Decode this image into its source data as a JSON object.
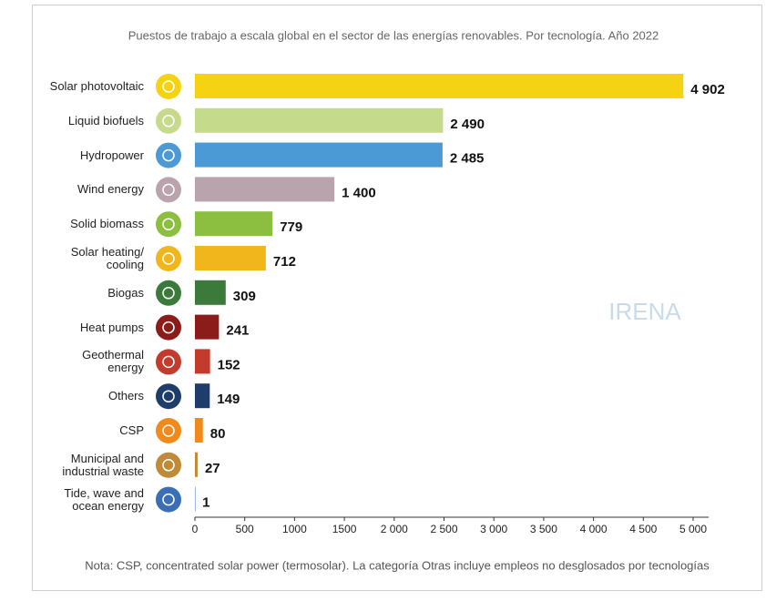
{
  "chart_data": {
    "type": "bar",
    "orientation": "horizontal",
    "title": "Puestos de trabajo a escala global en el sector de las energías renovables. Por tecnología. Año 2022",
    "categories": [
      "Solar photovoltaic",
      "Liquid biofuels",
      "Hydropower",
      "Wind energy",
      "Solid biomass",
      "Solar heating/ cooling",
      "Biogas",
      "Heat pumps",
      "Geothermal energy",
      "Others",
      "CSP",
      "Municipal and industrial waste",
      "Tide, wave and ocean energy"
    ],
    "values": [
      4902,
      2490,
      2485,
      1400,
      779,
      712,
      309,
      241,
      152,
      149,
      80,
      27,
      1
    ],
    "value_labels": [
      "4 902",
      "2 490",
      "2 485",
      "1 400",
      "779",
      "712",
      "309",
      "241",
      "152",
      "149",
      "80",
      "27",
      "1"
    ],
    "colors": [
      "#f5d313",
      "#c6da8c",
      "#4b9ad5",
      "#b9a3ad",
      "#8cbf3f",
      "#f2b61d",
      "#3b7a3b",
      "#8b1c1a",
      "#c23b2c",
      "#1f3d6b",
      "#f08a1d",
      "#c08a36",
      "#3a6fb5"
    ],
    "xlim": [
      0,
      5000
    ],
    "xticks": [
      0,
      500,
      {
        "value": 1000,
        "label": "1000"
      },
      1500,
      {
        "value": 2000,
        "label": "2 000"
      },
      {
        "value": 2500,
        "label": "2 500"
      },
      {
        "value": 3000,
        "label": "3 000"
      },
      {
        "value": 3500,
        "label": "3 500"
      },
      {
        "value": 4000,
        "label": "4 000"
      },
      {
        "value": 4500,
        "label": "4 500"
      },
      {
        "value": 5000,
        "label": "5 000"
      }
    ],
    "grid": false,
    "watermark": "IRENA",
    "note": "Nota: CSP, concentrated solar power (termosolar). La categoría Otras incluye empleos no desglosados por tecnologías"
  }
}
